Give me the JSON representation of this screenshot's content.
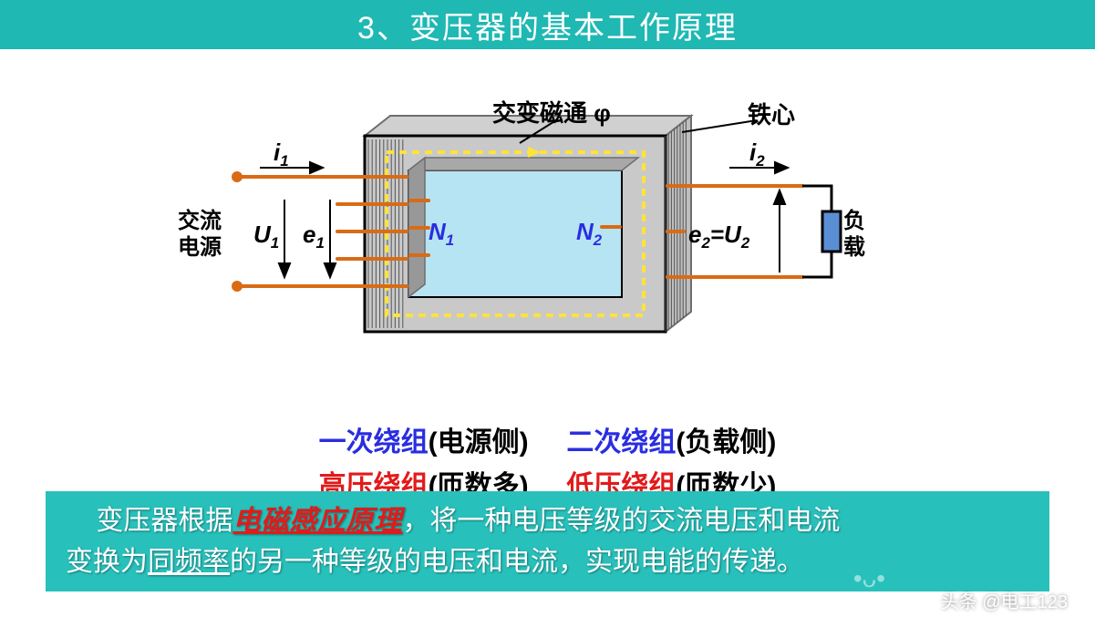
{
  "colors": {
    "teal": "#1fb8b3",
    "title_bg": "#1fb8b3",
    "footer_bg": "#28c0bb",
    "black": "#000000",
    "blue": "#2a2ee0",
    "red": "#e21a1a",
    "core_outer": "#c9c9c9",
    "core_border": "#6e6e6e",
    "core_window": "#b6e4f2",
    "flux_yellow": "#ffe23a",
    "wire_orange": "#d96b14",
    "load_blue": "#5a8fd6"
  },
  "title": "3、变压器的基本工作原理",
  "diagram": {
    "flux_label": "交变磁通 φ",
    "core_label": "铁心",
    "i1": "i",
    "i1_sub": "1",
    "i2": "i",
    "i2_sub": "2",
    "U1": "U",
    "U1_sub": "1",
    "e1": "e",
    "e1_sub": "1",
    "N1": "N",
    "N1_sub": "1",
    "N2": "N",
    "N2_sub": "2",
    "e2U2": "e",
    "e2_sub": "2",
    "e2U2_mid": "=U",
    "U2_sub": "2",
    "source": "交流\n电源",
    "load": "负\n载"
  },
  "legend": {
    "l1_a": "一次绕组",
    "l1_b": "(电源侧)",
    "l1_c": "二次绕组",
    "l1_d": "(负载侧)",
    "l2_a": "高压绕组",
    "l2_b": "(匝数多)",
    "l2_c": "低压绕组",
    "l2_d": "(匝数少)"
  },
  "footer": {
    "p1a": "变压器根据",
    "p1b": "电磁感应原理",
    "p1c": "，将一种电压等级的交流电压和电流",
    "p2a": "变换为",
    "p2b": "同频率",
    "p2c": "的另一种等级的电压和电流，实现电能的传递。"
  },
  "watermark": "头条 @电工123"
}
